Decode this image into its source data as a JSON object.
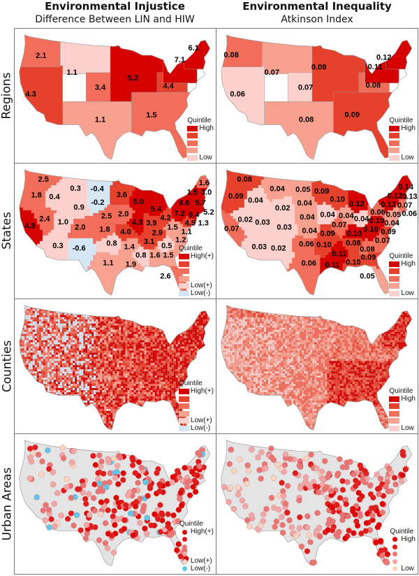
{
  "columns": [
    {
      "title": "Environmental Injustice",
      "subtitle": "Difference Between LIN and HIW"
    },
    {
      "title": "Environmental Inequality",
      "subtitle": "Atkinson Index"
    }
  ],
  "rows": [
    "Regions",
    "States",
    "Counties",
    "Urban Areas"
  ],
  "colors": {
    "quintile": [
      "#fcd0cc",
      "#f9a190",
      "#f26d5a",
      "#e5412d",
      "#d50000"
    ],
    "negative": "#d5e6f4",
    "dot_quintile": [
      "#fbd5c2",
      "#f2a6a6",
      "#eb7474",
      "#e21b1b",
      "#e00000"
    ],
    "dot_negative": "#5cc8ee",
    "urban_background": "#e4e4e4",
    "border": "#9a9a9a"
  },
  "legends": {
    "title": "Quintile",
    "regions_injustice": [
      "High",
      "",
      "",
      "",
      "Low"
    ],
    "signed": [
      "High(+)",
      "",
      "",
      "",
      "Low(+)",
      "Low(-)"
    ],
    "inequality": [
      "High",
      "",
      "",
      "",
      "Low"
    ]
  },
  "maps": {
    "regions_injustice": [
      {
        "value": "1.1",
        "quintile": 1
      },
      {
        "value": "3.4",
        "quintile": 3
      },
      {
        "value": "1.1",
        "quintile": 2
      },
      {
        "value": "4.3",
        "quintile": 4
      },
      {
        "value": "2.1",
        "quintile": 3
      },
      {
        "value": "5.2",
        "quintile": 5
      },
      {
        "value": "4.4",
        "quintile": 4
      },
      {
        "value": "1.5",
        "quintile": 3
      },
      {
        "value": "7.1",
        "quintile": 5
      },
      {
        "value": "6.1",
        "quintile": 5
      }
    ],
    "regions_inequality": [
      {
        "value": "0.07",
        "quintile": 2
      },
      {
        "value": "0.07",
        "quintile": 1
      },
      {
        "value": "0.08",
        "quintile": 2
      },
      {
        "value": "0.06",
        "quintile": 1
      },
      {
        "value": "0.08",
        "quintile": 3
      },
      {
        "value": "0.09",
        "quintile": 4
      },
      {
        "value": "0.08",
        "quintile": 3
      },
      {
        "value": "0.09",
        "quintile": 4
      },
      {
        "value": "0.11",
        "quintile": 5
      },
      {
        "value": "0.12",
        "quintile": 5
      }
    ],
    "states_injustice": [
      {
        "value": "2.5",
        "quintile": 3
      },
      {
        "value": "1.8",
        "quintile": 3
      },
      {
        "value": "0.4",
        "quintile": 1
      },
      {
        "value": "0.3",
        "quintile": 1
      },
      {
        "value": "-0.4",
        "quintile": 0
      },
      {
        "value": "-0.2",
        "quintile": 0
      },
      {
        "value": "0.9",
        "quintile": 1
      },
      {
        "value": "3.6",
        "quintile": 4
      },
      {
        "value": "5.0",
        "quintile": 5
      },
      {
        "value": "5.4",
        "quintile": 5
      },
      {
        "value": "2.5",
        "quintile": 3
      },
      {
        "value": "2.0",
        "quintile": 3
      },
      {
        "value": "1.0",
        "quintile": 1
      },
      {
        "value": "2.4",
        "quintile": 3
      },
      {
        "value": "4.8",
        "quintile": 5
      },
      {
        "value": "2.0",
        "quintile": 3
      },
      {
        "value": "1.8",
        "quintile": 3
      },
      {
        "value": "4.0",
        "quintile": 4
      },
      {
        "value": "4.9",
        "quintile": 5
      },
      {
        "value": "3.9",
        "quintile": 4
      },
      {
        "value": "4.2",
        "quintile": 4
      },
      {
        "value": "2.9",
        "quintile": 4
      },
      {
        "value": "7.2",
        "quintile": 5
      },
      {
        "value": "6.4",
        "quintile": 5
      },
      {
        "value": "6.6",
        "quintile": 5
      },
      {
        "value": "5.7",
        "quintile": 5
      },
      {
        "value": "1.5",
        "quintile": 5
      },
      {
        "value": "3.0",
        "quintile": 5
      },
      {
        "value": "1.6",
        "quintile": 3
      },
      {
        "value": "5.2",
        "quintile": 5
      },
      {
        "value": "4.5",
        "quintile": 4
      },
      {
        "value": "1.3",
        "quintile": 2
      },
      {
        "value": "1.5",
        "quintile": 2
      },
      {
        "value": "1.1",
        "quintile": 2
      },
      {
        "value": "1.2",
        "quintile": 2
      },
      {
        "value": "3.1",
        "quintile": 4
      },
      {
        "value": "0.5",
        "quintile": 1
      },
      {
        "value": "1.4",
        "quintile": 2
      },
      {
        "value": "0.8",
        "quintile": 1
      },
      {
        "value": "0.3",
        "quintile": 1
      },
      {
        "value": "-0.6",
        "quintile": 0
      },
      {
        "value": "1.1",
        "quintile": 2
      },
      {
        "value": "1.9",
        "quintile": 2
      },
      {
        "value": "0.8",
        "quintile": 1
      },
      {
        "value": "1.6",
        "quintile": 2
      },
      {
        "value": "1.5",
        "quintile": 2
      },
      {
        "value": "2.6",
        "quintile": 3
      }
    ],
    "states_inequality": [
      {
        "value": "0.08",
        "quintile": 4
      },
      {
        "value": "0.09",
        "quintile": 4
      },
      {
        "value": "0.04",
        "quintile": 1
      },
      {
        "value": "0.04",
        "quintile": 2
      },
      {
        "value": "0.05",
        "quintile": 2
      },
      {
        "value": "0.04",
        "quintile": 2
      },
      {
        "value": "0.02",
        "quintile": 1
      },
      {
        "value": "0.09",
        "quintile": 4
      },
      {
        "value": "0.10",
        "quintile": 4
      },
      {
        "value": "0.12",
        "quintile": 5
      },
      {
        "value": "0.04",
        "quintile": 2
      },
      {
        "value": "0.04",
        "quintile": 1
      },
      {
        "value": "0.02",
        "quintile": 1
      },
      {
        "value": "0.03",
        "quintile": 1
      },
      {
        "value": "0.07",
        "quintile": 3
      },
      {
        "value": "0.03",
        "quintile": 1
      },
      {
        "value": "0.04",
        "quintile": 2
      },
      {
        "value": "0.09",
        "quintile": 4
      },
      {
        "value": "0.07",
        "quintile": 3
      },
      {
        "value": "0.04",
        "quintile": 2
      },
      {
        "value": "0.04",
        "quintile": 1
      },
      {
        "value": "0.10",
        "quintile": 5
      },
      {
        "value": "0.06",
        "quintile": 3
      },
      {
        "value": "0.05",
        "quintile": 2
      },
      {
        "value": "0.14",
        "quintile": 5
      },
      {
        "value": "0.12",
        "quintile": 5
      },
      {
        "value": "0.13",
        "quintile": 5
      },
      {
        "value": "0.13",
        "quintile": 5
      },
      {
        "value": "0.07",
        "quintile": 3
      },
      {
        "value": "0.06",
        "quintile": 2
      },
      {
        "value": "0.10",
        "quintile": 5
      },
      {
        "value": "0.04",
        "quintile": 2
      },
      {
        "value": "0.09",
        "quintile": 4
      },
      {
        "value": "0.10",
        "quintile": 5
      },
      {
        "value": "0.08",
        "quintile": 4
      },
      {
        "value": "0.07",
        "quintile": 3
      },
      {
        "value": "0.08",
        "quintile": 3
      },
      {
        "value": "0.06",
        "quintile": 3
      },
      {
        "value": "0.03",
        "quintile": 1
      },
      {
        "value": "0.02",
        "quintile": 1
      },
      {
        "value": "0.10",
        "quintile": 4
      },
      {
        "value": "0.11",
        "quintile": 5
      },
      {
        "value": "0.11",
        "quintile": 5
      },
      {
        "value": "0.10",
        "quintile": 4
      },
      {
        "value": "0.09",
        "quintile": 4
      },
      {
        "value": "0.06",
        "quintile": 3
      },
      {
        "value": "0.05",
        "quintile": 2
      }
    ]
  }
}
